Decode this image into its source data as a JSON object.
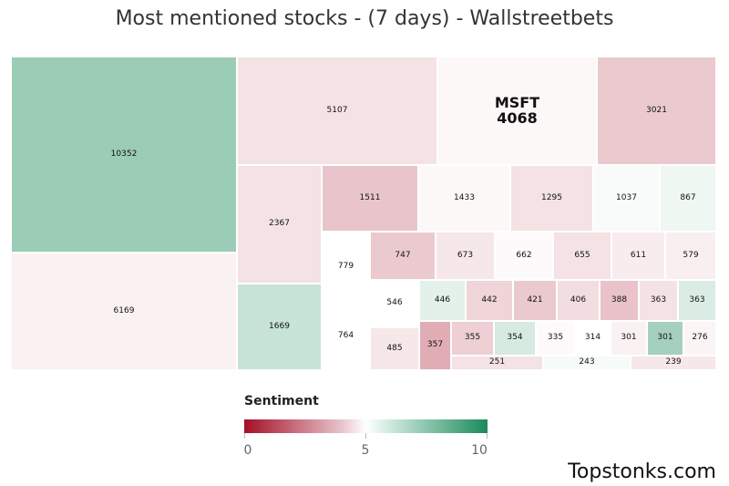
{
  "title": "Most mentioned stocks - (7 days) - Wallstreetbets",
  "brand": "Topstonks.com",
  "chart_data": {
    "type": "treemap",
    "items": [
      {
        "label": "",
        "value": 10352,
        "sentiment": 7.2
      },
      {
        "label": "",
        "value": 6169,
        "sentiment": 4.7
      },
      {
        "label": "",
        "value": 5107,
        "sentiment": 4.4
      },
      {
        "label": "MSFT",
        "value": 4068,
        "sentiment": 4.85
      },
      {
        "label": "",
        "value": 3021,
        "sentiment": 3.9
      },
      {
        "label": "",
        "value": 2367,
        "sentiment": 4.4
      },
      {
        "label": "",
        "value": 1669,
        "sentiment": 6.2
      },
      {
        "label": "",
        "value": 1511,
        "sentiment": 3.8
      },
      {
        "label": "",
        "value": 1433,
        "sentiment": 4.85
      },
      {
        "label": "",
        "value": 1295,
        "sentiment": 4.4
      },
      {
        "label": "",
        "value": 1037,
        "sentiment": 5.15
      },
      {
        "label": "",
        "value": 867,
        "sentiment": 5.35
      },
      {
        "label": "",
        "value": 779,
        "sentiment": 5.0
      },
      {
        "label": "",
        "value": 764,
        "sentiment": 5.0
      },
      {
        "label": "",
        "value": 747,
        "sentiment": 3.9
      },
      {
        "label": "",
        "value": 673,
        "sentiment": 4.5
      },
      {
        "label": "",
        "value": 662,
        "sentiment": 4.9
      },
      {
        "label": "",
        "value": 655,
        "sentiment": 4.4
      },
      {
        "label": "",
        "value": 611,
        "sentiment": 4.6
      },
      {
        "label": "",
        "value": 579,
        "sentiment": 4.65
      },
      {
        "label": "",
        "value": 546,
        "sentiment": 5.0
      },
      {
        "label": "",
        "value": 485,
        "sentiment": 4.5
      },
      {
        "label": "",
        "value": 446,
        "sentiment": 5.6
      },
      {
        "label": "",
        "value": 442,
        "sentiment": 4.1
      },
      {
        "label": "",
        "value": 421,
        "sentiment": 3.9
      },
      {
        "label": "",
        "value": 406,
        "sentiment": 4.3
      },
      {
        "label": "",
        "value": 388,
        "sentiment": 3.75
      },
      {
        "label": "",
        "value": 363,
        "sentiment": 4.4
      },
      {
        "label": "",
        "value": 363,
        "sentiment": 5.8
      },
      {
        "label": "",
        "value": 357,
        "sentiment": 3.3
      },
      {
        "label": "",
        "value": 355,
        "sentiment": 4.0
      },
      {
        "label": "",
        "value": 354,
        "sentiment": 5.9
      },
      {
        "label": "",
        "value": 335,
        "sentiment": 4.9
      },
      {
        "label": "",
        "value": 314,
        "sentiment": 5.0
      },
      {
        "label": "",
        "value": 301,
        "sentiment": 4.7
      },
      {
        "label": "",
        "value": 301,
        "sentiment": 7.0
      },
      {
        "label": "",
        "value": 276,
        "sentiment": 4.8
      },
      {
        "label": "",
        "value": 251,
        "sentiment": 4.4
      },
      {
        "label": "",
        "value": 243,
        "sentiment": 5.2
      },
      {
        "label": "",
        "value": 239,
        "sentiment": 4.5
      }
    ],
    "legend": {
      "title": "Sentiment",
      "min_label": "0",
      "mid_label": "5",
      "max_label": "10",
      "min": 0,
      "mid": 5,
      "max": 10,
      "color_low": "#a50f26",
      "color_mid": "#ffffff",
      "color_high": "#1b8a5a"
    }
  }
}
